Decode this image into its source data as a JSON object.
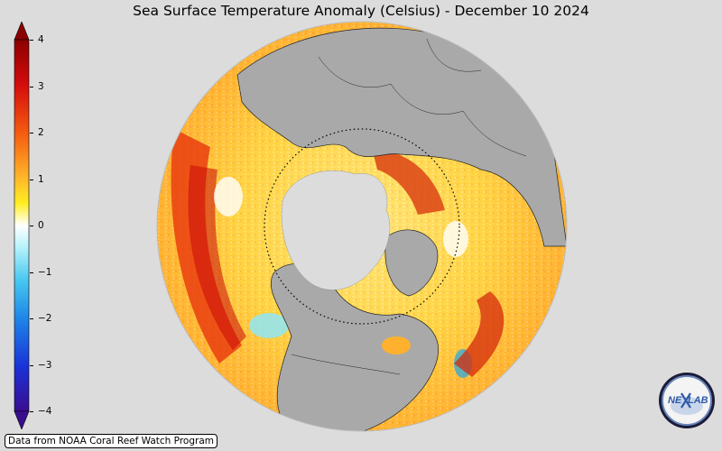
{
  "title": "Sea Surface Temperature Anomaly (Celsius) - December 10 2024",
  "colorbar": {
    "ticks": [
      "4",
      "3",
      "2",
      "1",
      "0",
      "−1",
      "−2",
      "−3",
      "−4"
    ],
    "tick_values": [
      4,
      3,
      2,
      1,
      0,
      -1,
      -2,
      -3,
      -4
    ],
    "range": [
      -4,
      4
    ],
    "colors": {
      "max": "#8b0000",
      "high": "#e8200a",
      "mid_high": "#ff9a1e",
      "low_high": "#ffee20",
      "zero": "#ffffff",
      "low": "#8fe6f6",
      "mid_low": "#20a6e8",
      "min": "#2030d8",
      "floor": "#3a0d8f"
    }
  },
  "map": {
    "projection": "orthographic-north-polar",
    "land_color": "#a9a9a9",
    "ice_color": "#dcdcdc",
    "arctic_circle": "dotted"
  },
  "credit": "Data from NOAA Coral Reef Watch Program",
  "logo": {
    "text_left": "NE",
    "text_right": "LAB",
    "icon": "nexlab-logo-icon"
  }
}
